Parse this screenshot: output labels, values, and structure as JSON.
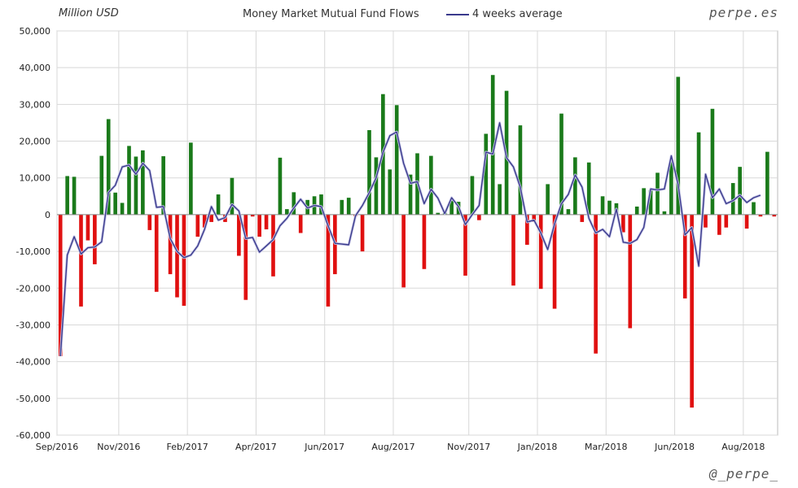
{
  "header": {
    "unit_label": "Million USD",
    "title": "Money Market Mutual Fund Flows",
    "brand": "perpe.es"
  },
  "footer": {
    "handle": "@_perpe_"
  },
  "chart_data": {
    "type": "bar",
    "title": "Money Market Mutual Fund Flows",
    "ylabel": "Million USD",
    "ylim": [
      -60000,
      50000
    ],
    "yticks": [
      50000,
      40000,
      30000,
      20000,
      10000,
      0,
      -10000,
      -20000,
      -30000,
      -40000,
      -50000,
      -60000
    ],
    "ytick_labels": [
      "50,000",
      "40,000",
      "30,000",
      "20,000",
      "10,000",
      "0",
      "-10,000",
      "-20,000",
      "-30,000",
      "-40,000",
      "-50,000",
      "-60,000"
    ],
    "xtick_labels": [
      "Sep/2016",
      "Nov/2016",
      "Feb/2017",
      "Apr/2017",
      "Jun/2017",
      "Aug/2017",
      "Nov/2017",
      "Jan/2018",
      "Mar/2018",
      "Jun/2018",
      "Aug/2018"
    ],
    "xtick_positions": [
      0,
      9,
      19,
      29,
      39,
      49,
      60,
      70,
      80,
      90,
      100
    ],
    "grid": true,
    "legend": "top-center",
    "colors": {
      "positive": "#1a7a1a",
      "negative": "#e01010",
      "average": "#3a3a8c",
      "grid": "#d8d8d8"
    },
    "series": [
      {
        "type": "bar",
        "values": [
          -38500,
          10500,
          10300,
          -25000,
          -7000,
          -13500,
          16000,
          26000,
          6000,
          3200,
          18700,
          15800,
          17500,
          -4200,
          -21000,
          15900,
          -16200,
          -22500,
          -24800,
          19600,
          -6000,
          -3500,
          -2000,
          5500,
          -2000,
          10000,
          -11200,
          -23200,
          -500,
          -6000,
          -4000,
          -16800,
          15500,
          1500,
          6100,
          -5000,
          4000,
          5000,
          5500,
          -25000,
          -16200,
          4000,
          4600,
          -400,
          -10000,
          23000,
          15600,
          32800,
          12300,
          29800,
          -19800,
          10900,
          16700,
          -14800,
          16000,
          500,
          500,
          3800,
          3500,
          -16600,
          10500,
          -1500,
          22000,
          38000,
          8300,
          33700,
          -19300,
          24300,
          -8200,
          -2000,
          -20200,
          8300,
          -25600,
          27500,
          1500,
          15600,
          -2000,
          14200,
          -37800,
          5000,
          3800,
          3100,
          -4800,
          -30900,
          2200,
          7200,
          6700,
          11400,
          900,
          14800,
          37500,
          -22800,
          -52500,
          22400,
          -3500,
          28800,
          -5500,
          -3500,
          8600,
          13000,
          -3800,
          3400,
          -500,
          17100,
          -500
        ]
      },
      {
        "name": "4 weeks average",
        "type": "line",
        "values": [
          -38500,
          -11000,
          -6000,
          -10700,
          -9000,
          -8800,
          -7400,
          6000,
          8000,
          13000,
          13500,
          11000,
          14000,
          12000,
          2000,
          2200,
          -6500,
          -10000,
          -11700,
          -11000,
          -8500,
          -4000,
          2200,
          -1500,
          -800,
          2800,
          1000,
          -6500,
          -6200,
          -10200,
          -8500,
          -6800,
          -3000,
          -1000,
          1800,
          4200,
          1800,
          2500,
          2200,
          -3000,
          -7800,
          -8000,
          -8200,
          -300,
          2500,
          6000,
          10000,
          17000,
          21500,
          22500,
          14000,
          8500,
          9000,
          3000,
          6900,
          4500,
          300,
          4600,
          2200,
          -2700,
          0,
          2500,
          17000,
          16500,
          25000,
          15500,
          13000,
          7500,
          -2000,
          -1500,
          -5000,
          -9500,
          -2500,
          3000,
          5500,
          10800,
          7500,
          -1000,
          -5000,
          -4000,
          -6000,
          1500,
          -7500,
          -7800,
          -6800,
          -3500,
          7000,
          6700,
          7000,
          16000,
          8200,
          -5500,
          -3500,
          -14000,
          11000,
          4600,
          7000,
          3000,
          3800,
          5300,
          3300,
          4600,
          5300
        ]
      }
    ]
  }
}
